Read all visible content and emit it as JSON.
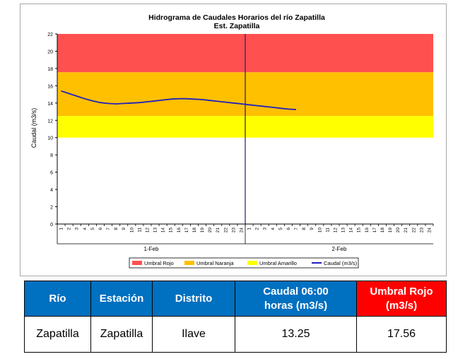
{
  "chart_data": {
    "type": "line",
    "title": "Hidrograma de Caudales Horarios del río Zapatilla",
    "subtitle": "Est. Zapatilla",
    "ylabel": "Caudal  (m3/s)",
    "xlabel": "",
    "ylim": [
      0,
      22
    ],
    "yticks": [
      "0",
      "2",
      "4",
      "6",
      "8",
      "10",
      "12",
      "14",
      "16",
      "18",
      "20",
      "22"
    ],
    "hour_labels": [
      "1",
      "2",
      "3",
      "4",
      "5",
      "6",
      "7",
      "8",
      "9",
      "10",
      "11",
      "12",
      "13",
      "14",
      "15",
      "16",
      "17",
      "18",
      "19",
      "20",
      "21",
      "22",
      "23",
      "24"
    ],
    "day_labels": [
      "1-Feb",
      "2-Feb"
    ],
    "bands": [
      {
        "name": "Umbral Rojo",
        "from": 17.56,
        "to": 22,
        "color": "#ff5050"
      },
      {
        "name": "Umbral Naranja",
        "from": 12.5,
        "to": 17.56,
        "color": "#ffc000"
      },
      {
        "name": "Umbral Amarillo",
        "from": 10,
        "to": 12.5,
        "color": "#ffff00"
      }
    ],
    "series": [
      {
        "name": "Caudal (m3/s)",
        "color": "#1f1fbf",
        "x": [
          1,
          2,
          3,
          4,
          5,
          6,
          7,
          8,
          9,
          10,
          11,
          12,
          13,
          14,
          15,
          16,
          17,
          18,
          19,
          20,
          21,
          22,
          23,
          24,
          25,
          26,
          27,
          28,
          29,
          30,
          31
        ],
        "values": [
          15.4,
          15.1,
          14.8,
          14.5,
          14.25,
          14.05,
          13.95,
          13.9,
          13.95,
          14.0,
          14.05,
          14.15,
          14.25,
          14.35,
          14.45,
          14.5,
          14.5,
          14.45,
          14.4,
          14.3,
          14.2,
          14.1,
          14.0,
          13.9,
          13.8,
          13.7,
          13.6,
          13.5,
          13.4,
          13.3,
          13.25
        ]
      }
    ],
    "legend": [
      {
        "label": "Umbral Rojo",
        "color": "#ff5050",
        "kind": "box"
      },
      {
        "label": "Umbral Naranja",
        "color": "#ffc000",
        "kind": "box"
      },
      {
        "label": "Umbral Amarillo",
        "color": "#ffff00",
        "kind": "box"
      },
      {
        "label": "Caudal (m3/s)",
        "color": "#1f1fbf",
        "kind": "line"
      }
    ],
    "legend_position": "bottom",
    "grid": false
  },
  "table": {
    "headers": {
      "rio": "Río",
      "estacion": "Estación",
      "distrito": "Distrito",
      "caudal": "Caudal  06:00 horas (m3/s)",
      "umbral": "Umbral Rojo (m3/s)"
    },
    "row": {
      "rio": "Zapatilla",
      "estacion": "Zapatilla",
      "distrito": "Ilave",
      "caudal": "13.25",
      "umbral": "17.56"
    }
  }
}
